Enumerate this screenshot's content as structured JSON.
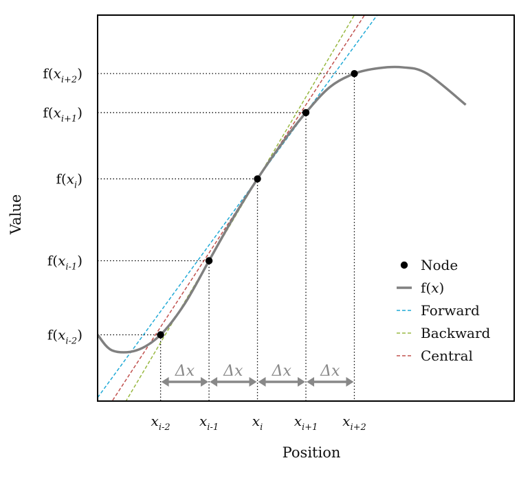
{
  "chart_data": {
    "type": "line",
    "xlabel": "Position",
    "ylabel": "Value",
    "nodes": [
      {
        "x": -2,
        "y": -2
      },
      {
        "x": -1,
        "y": -1.05
      },
      {
        "x": 0,
        "y": 0
      },
      {
        "x": 1,
        "y": 0.85
      },
      {
        "x": 2,
        "y": 1.35
      }
    ],
    "x_ticks": [
      {
        "base": "x",
        "sub": "i-2",
        "value": -2
      },
      {
        "base": "x",
        "sub": "i-1",
        "value": -1
      },
      {
        "base": "x",
        "sub": "i",
        "value": 0
      },
      {
        "base": "x",
        "sub": "i+1",
        "value": 1
      },
      {
        "base": "x",
        "sub": "i+2",
        "value": 2
      }
    ],
    "y_ticks": [
      {
        "base": "f(x",
        "sub": "i-2",
        "close": ")",
        "value": -2
      },
      {
        "base": "f(x",
        "sub": "i-1",
        "close": ")",
        "value": -1.05
      },
      {
        "base": "f(x",
        "sub": "i",
        "close": ")",
        "value": 0
      },
      {
        "base": "f(x",
        "sub": "i+1",
        "close": ")",
        "value": 0.85
      },
      {
        "base": "f(x",
        "sub": "i+2",
        "close": ")",
        "value": 1.35
      }
    ],
    "series": [
      {
        "name": "Node",
        "kind": "points",
        "color": "#000000"
      },
      {
        "name": "f(x)",
        "kind": "curve",
        "color": "#808080",
        "x": [
          -3.3,
          -3.0,
          -2.5,
          -2.0,
          -1.5,
          -1.0,
          -0.5,
          0,
          0.5,
          1.0,
          1.5,
          2.0,
          2.5,
          3.0,
          3.5,
          4.3
        ],
        "y": [
          -2.0,
          -2.2,
          -2.2,
          -2.0,
          -1.6,
          -1.05,
          -0.5,
          0,
          0.45,
          0.85,
          1.18,
          1.35,
          1.42,
          1.43,
          1.35,
          0.95
        ]
      },
      {
        "name": "Forward",
        "kind": "line",
        "color": "#1fa9d6",
        "slope": 0.85
      },
      {
        "name": "Backward",
        "kind": "line",
        "color": "#98b840",
        "slope": 1.05
      },
      {
        "name": "Central",
        "kind": "line",
        "color": "#c0504d",
        "slope": 0.95
      }
    ],
    "dx_label": "Δx",
    "dx_color": "#888888",
    "xlim": [
      -3.3,
      5.3
    ],
    "ylim": [
      -2.85,
      2.1
    ],
    "grid": false,
    "legend": "bottom-right"
  }
}
